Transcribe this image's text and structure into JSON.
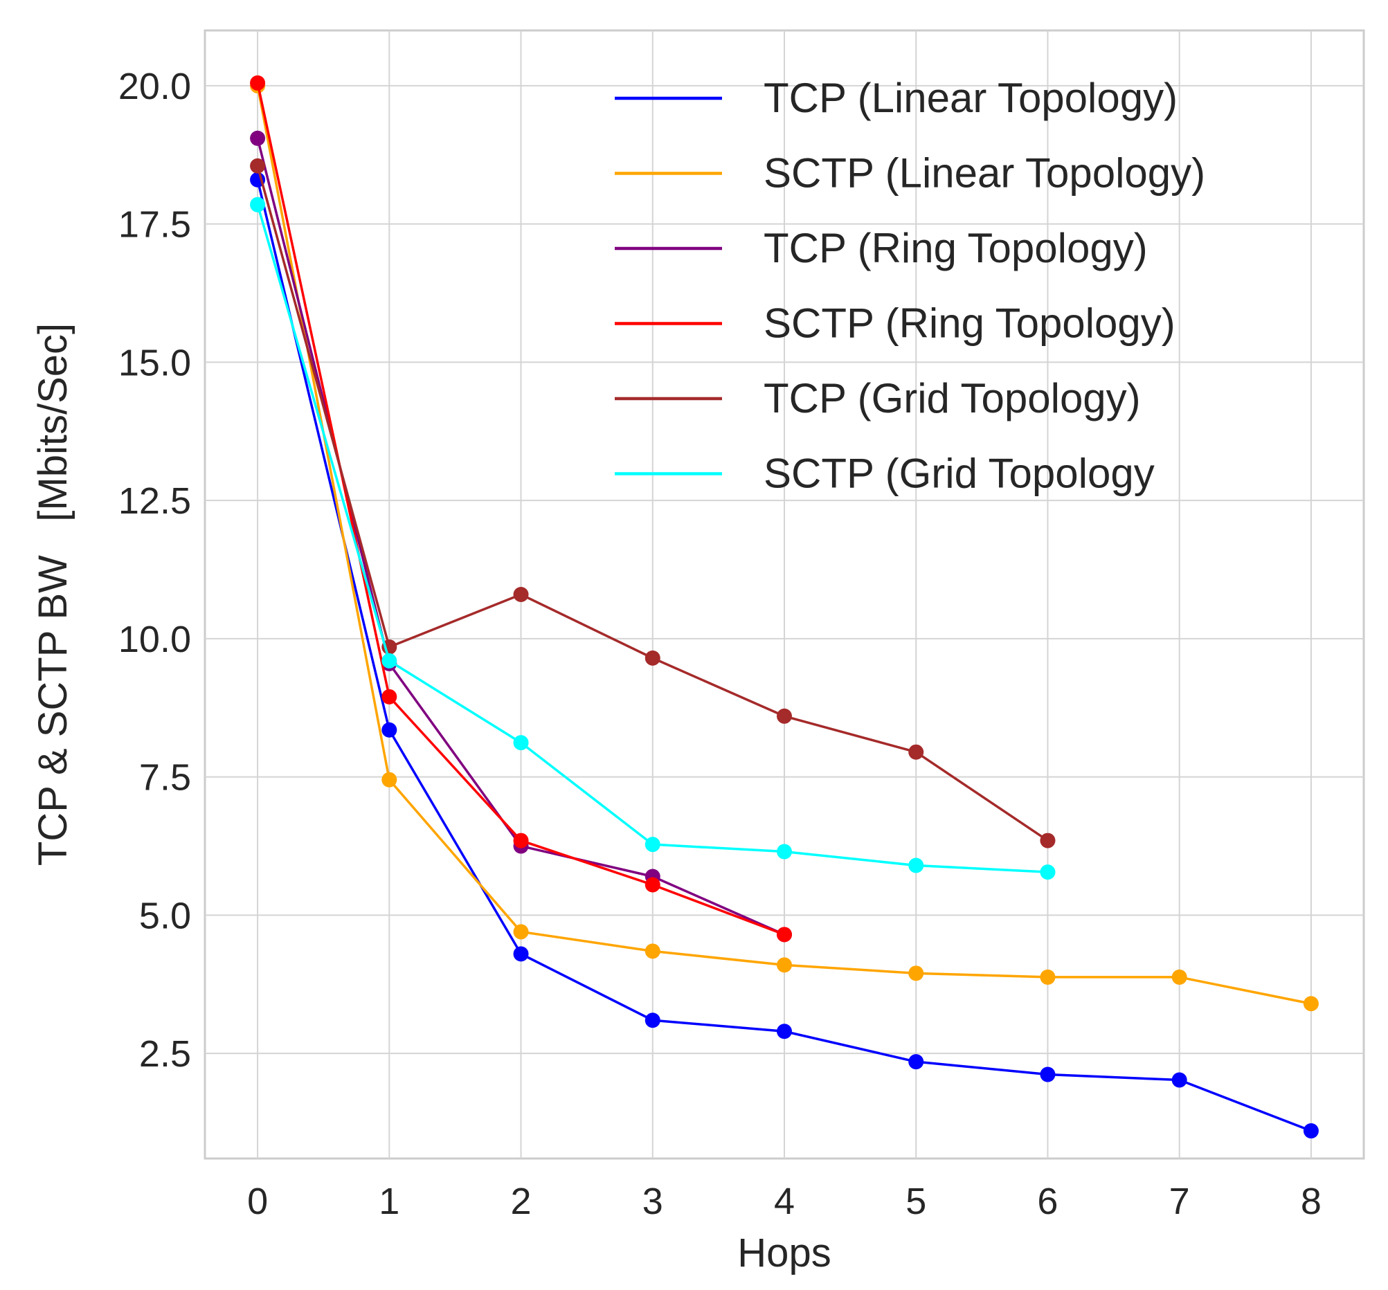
{
  "chart_data": {
    "type": "line",
    "title": "",
    "xlabel": "Hops",
    "ylabel": "TCP & SCTP BW   [Mbits/Sec]",
    "xlim": [
      -0.4,
      8.4
    ],
    "ylim": [
      0.6,
      21.0
    ],
    "xticks": [
      "0",
      "1",
      "2",
      "3",
      "4",
      "5",
      "6",
      "7",
      "8"
    ],
    "yticks": [
      "2.5",
      "5.0",
      "7.5",
      "10.0",
      "12.5",
      "15.0",
      "17.5",
      "20.0"
    ],
    "grid": true,
    "legend_position": "top-right",
    "series": [
      {
        "name": "TCP (Linear Topology)",
        "color": "#0000ff",
        "x": [
          0,
          1,
          2,
          3,
          4,
          5,
          6,
          7,
          8
        ],
        "y": [
          18.3,
          8.35,
          4.3,
          3.1,
          2.9,
          2.35,
          2.12,
          2.02,
          1.1
        ]
      },
      {
        "name": "SCTP (Linear Topology)",
        "color": "#ffa500",
        "x": [
          0,
          1,
          2,
          3,
          4,
          5,
          6,
          7,
          8
        ],
        "y": [
          20.0,
          7.45,
          4.7,
          4.35,
          4.1,
          3.95,
          3.88,
          3.88,
          3.4
        ]
      },
      {
        "name": "TCP (Ring Topology)",
        "color": "#800080",
        "x": [
          0,
          1,
          2,
          3,
          4
        ],
        "y": [
          19.05,
          9.55,
          6.25,
          5.7,
          4.65
        ]
      },
      {
        "name": "SCTP (Ring Topology)",
        "color": "#ff0000",
        "x": [
          0,
          1,
          2,
          3,
          4
        ],
        "y": [
          20.05,
          8.95,
          6.35,
          5.55,
          4.65
        ]
      },
      {
        "name": "TCP (Grid Topology)",
        "color": "#a52a2a",
        "x": [
          0,
          1,
          2,
          3,
          4,
          5,
          6
        ],
        "y": [
          18.55,
          9.85,
          10.8,
          9.65,
          8.6,
          7.95,
          6.35
        ]
      },
      {
        "name": "SCTP (Grid Topology",
        "color": "#00ffff",
        "x": [
          0,
          1,
          2,
          3,
          4,
          5,
          6
        ],
        "y": [
          17.85,
          9.6,
          8.12,
          6.28,
          6.15,
          5.9,
          5.78
        ]
      }
    ]
  }
}
